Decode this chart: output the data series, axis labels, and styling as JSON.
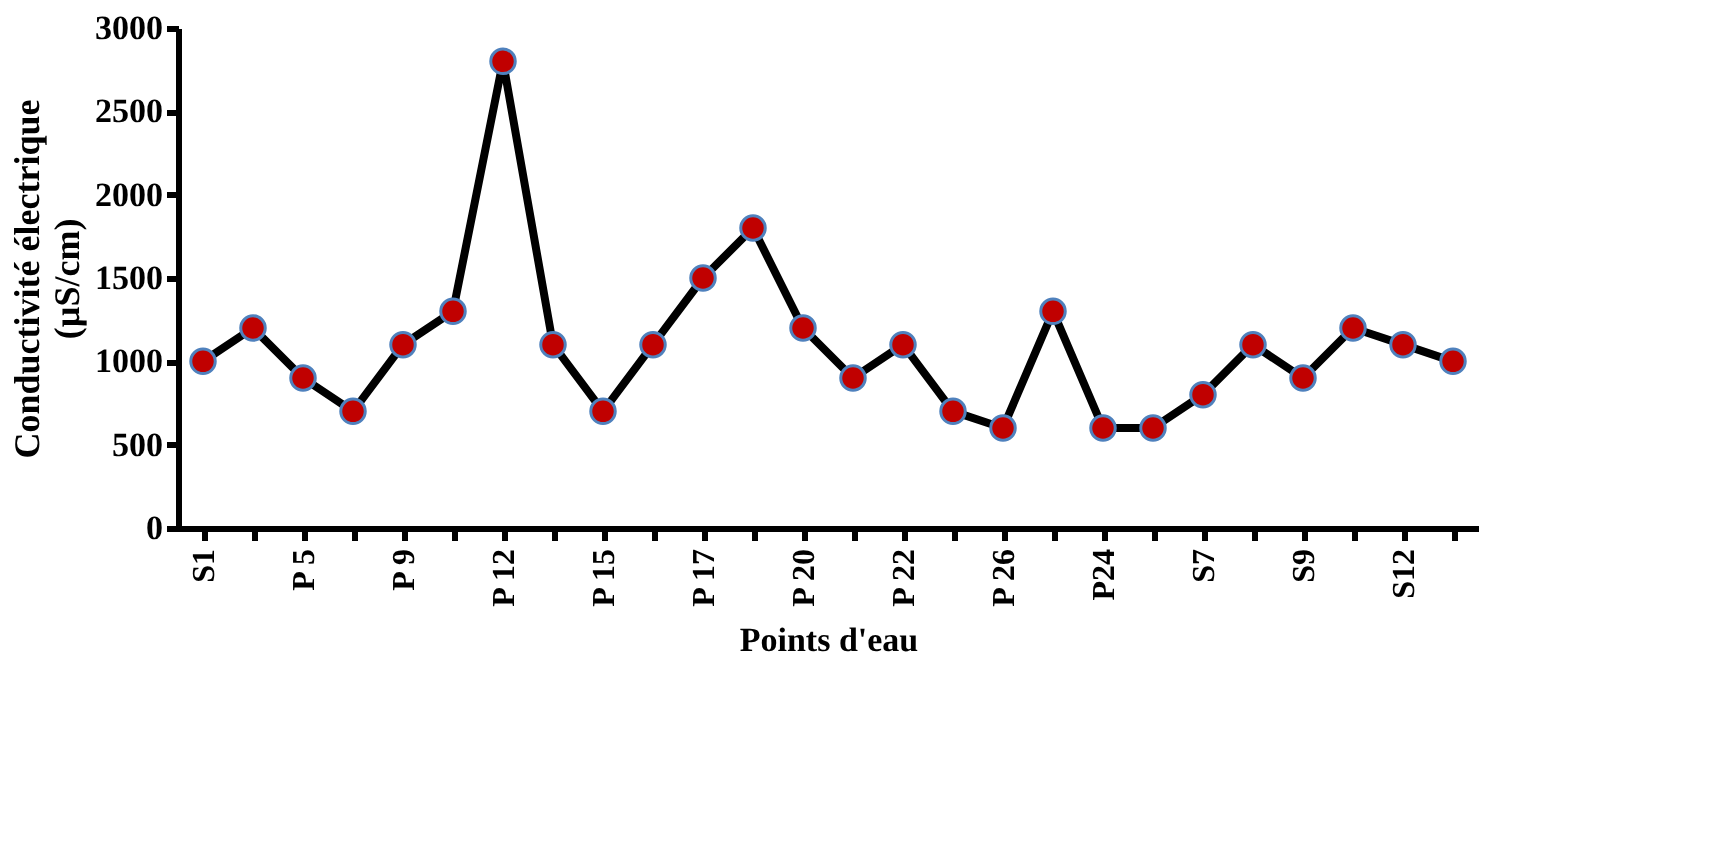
{
  "chart_data": {
    "type": "line",
    "xlabel": "Points d'eau",
    "ylabel": "Conductivité électrique (µS/cm)",
    "categories": [
      "S1",
      null,
      "P 5",
      null,
      "P 9",
      null,
      "P 12",
      null,
      "P 15",
      null,
      "P 17",
      null,
      "P 20",
      null,
      "P 22",
      null,
      "P 26",
      null,
      "P24",
      null,
      "S7",
      null,
      "S9",
      null,
      "S12",
      null
    ],
    "series": [
      {
        "color": "#000000",
        "values": [
          1000,
          1200,
          900,
          700,
          1100,
          1300,
          2800,
          1100,
          700,
          1100,
          1500,
          1800,
          1200,
          900,
          1100,
          700,
          600,
          1300,
          600,
          600,
          800,
          1100,
          900,
          1200,
          1100,
          1000
        ]
      }
    ],
    "marker": "circle",
    "line_style": "solid",
    "ylim": [
      0,
      3000
    ],
    "yticks": [
      0,
      500,
      1000,
      1500,
      2000,
      2500,
      3000
    ],
    "grid": false
  }
}
